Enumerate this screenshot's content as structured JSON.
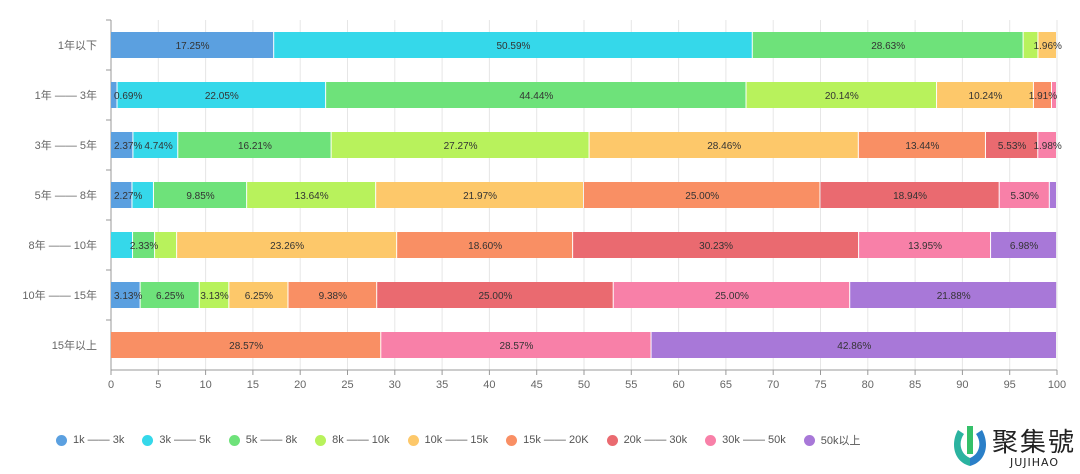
{
  "chart_data": {
    "type": "bar",
    "orientation": "horizontal",
    "stacked": true,
    "categories": [
      "1年以下",
      "1年 —— 3年",
      "3年 —— 5年",
      "5年 —— 8年",
      "8年 —— 10年",
      "10年 —— 15年",
      "15年以上"
    ],
    "xlim": [
      0,
      100
    ],
    "xticks": [
      "0",
      "5",
      "10",
      "15",
      "20",
      "25",
      "30",
      "35",
      "40",
      "45",
      "50",
      "55",
      "60",
      "65",
      "70",
      "75",
      "80",
      "85",
      "90",
      "95",
      "100"
    ],
    "grid": "vertical",
    "legend_position": "bottom",
    "series": [
      {
        "name": "1k —— 3k",
        "color": "#5ba0e0",
        "values": [
          17.25,
          0.69,
          2.37,
          2.27,
          0,
          3.13,
          0
        ],
        "labels": [
          "17.25%",
          "0.69%",
          "2.37%",
          "2.27%",
          "",
          "3.13%",
          ""
        ]
      },
      {
        "name": "3k —— 5k",
        "color": "#35d8ea",
        "values": [
          50.59,
          22.05,
          4.74,
          2.27,
          2.33,
          0,
          0
        ],
        "labels": [
          "50.59%",
          "22.05%",
          "4.74%",
          "",
          "",
          "",
          ""
        ]
      },
      {
        "name": "5k —— 8k",
        "color": "#6ee27a",
        "values": [
          28.63,
          44.44,
          16.21,
          9.85,
          2.33,
          6.25,
          0
        ],
        "labels": [
          "28.63%",
          "44.44%",
          "16.21%",
          "9.85%",
          "2.33%",
          "6.25%",
          ""
        ]
      },
      {
        "name": "8k —— 10k",
        "color": "#b8f25c",
        "values": [
          1.57,
          20.14,
          27.27,
          13.64,
          2.33,
          3.13,
          0
        ],
        "labels": [
          "",
          "20.14%",
          "27.27%",
          "13.64%",
          "",
          "3.13%",
          ""
        ]
      },
      {
        "name": "10k —— 15k",
        "color": "#fdc86a",
        "values": [
          1.96,
          10.24,
          28.46,
          21.97,
          23.26,
          6.25,
          0
        ],
        "labels": [
          "1.96%",
          "10.24%",
          "28.46%",
          "21.97%",
          "23.26%",
          "6.25%",
          ""
        ]
      },
      {
        "name": "15k —— 20K",
        "color": "#f98f64",
        "values": [
          0,
          1.91,
          13.44,
          25.0,
          18.6,
          9.38,
          28.57
        ],
        "labels": [
          "",
          "1.91%",
          "13.44%",
          "25.00%",
          "18.60%",
          "9.38%",
          "28.57%"
        ]
      },
      {
        "name": "20k —— 30k",
        "color": "#ea6a70",
        "values": [
          0,
          0,
          5.53,
          18.94,
          30.23,
          25.0,
          0
        ],
        "labels": [
          "",
          "",
          "5.53%",
          "18.94%",
          "30.23%",
          "25.00%",
          ""
        ]
      },
      {
        "name": "30k —— 50k",
        "color": "#f880a8",
        "values": [
          0,
          0.53,
          1.98,
          5.3,
          13.95,
          25.0,
          28.57
        ],
        "labels": [
          "",
          "",
          "1.98%",
          "5.30%",
          "13.95%",
          "25.00%",
          "28.57%"
        ]
      },
      {
        "name": "50k以上",
        "color": "#a878d8",
        "values": [
          0,
          0,
          0,
          0.76,
          6.98,
          21.88,
          42.86
        ],
        "labels": [
          "",
          "",
          "",
          "",
          "6.98%",
          "21.88%",
          "42.86%"
        ]
      }
    ]
  },
  "watermark": {
    "text_cn": "聚集號",
    "text_en": "JUJIHAO"
  }
}
